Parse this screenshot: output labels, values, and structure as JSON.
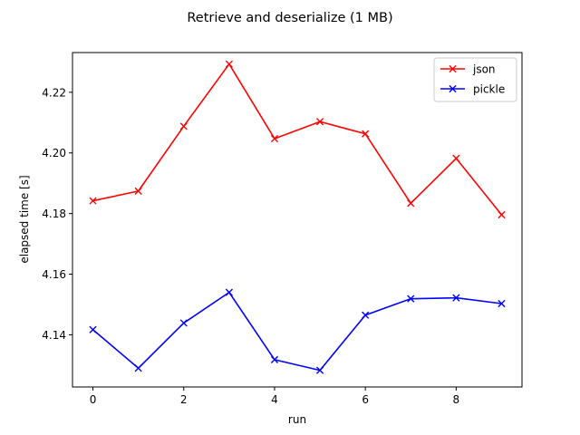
{
  "chart_data": {
    "type": "line",
    "title": "Retrieve and deserialize (1 MB)",
    "xlabel": "run",
    "ylabel": "elapsed time [s]",
    "xlim": [
      -0.45,
      9.45
    ],
    "ylim": [
      4.1228,
      4.2331
    ],
    "xticks": [
      0,
      2,
      4,
      6,
      8
    ],
    "yticks": [
      4.14,
      4.16,
      4.18,
      4.2,
      4.22
    ],
    "xtick_labels": [
      "0",
      "2",
      "4",
      "6",
      "8"
    ],
    "ytick_labels": [
      "4.14",
      "4.16",
      "4.18",
      "4.20",
      "4.22"
    ],
    "x": [
      0,
      1,
      2,
      3,
      4,
      5,
      6,
      7,
      8,
      9
    ],
    "legend_position": "top-right",
    "grid": false,
    "series": [
      {
        "name": "json",
        "color": "#ff0000",
        "marker": "x",
        "values": [
          4.1842,
          4.1874,
          4.2088,
          4.2293,
          4.2047,
          4.2103,
          4.2063,
          4.1834,
          4.1982,
          4.1796
        ]
      },
      {
        "name": "pickle",
        "color": "#0000ff",
        "marker": "x",
        "values": [
          4.1417,
          4.129,
          4.1439,
          4.154,
          4.1318,
          4.1283,
          4.1465,
          4.1519,
          4.1522,
          4.1503
        ]
      }
    ]
  }
}
